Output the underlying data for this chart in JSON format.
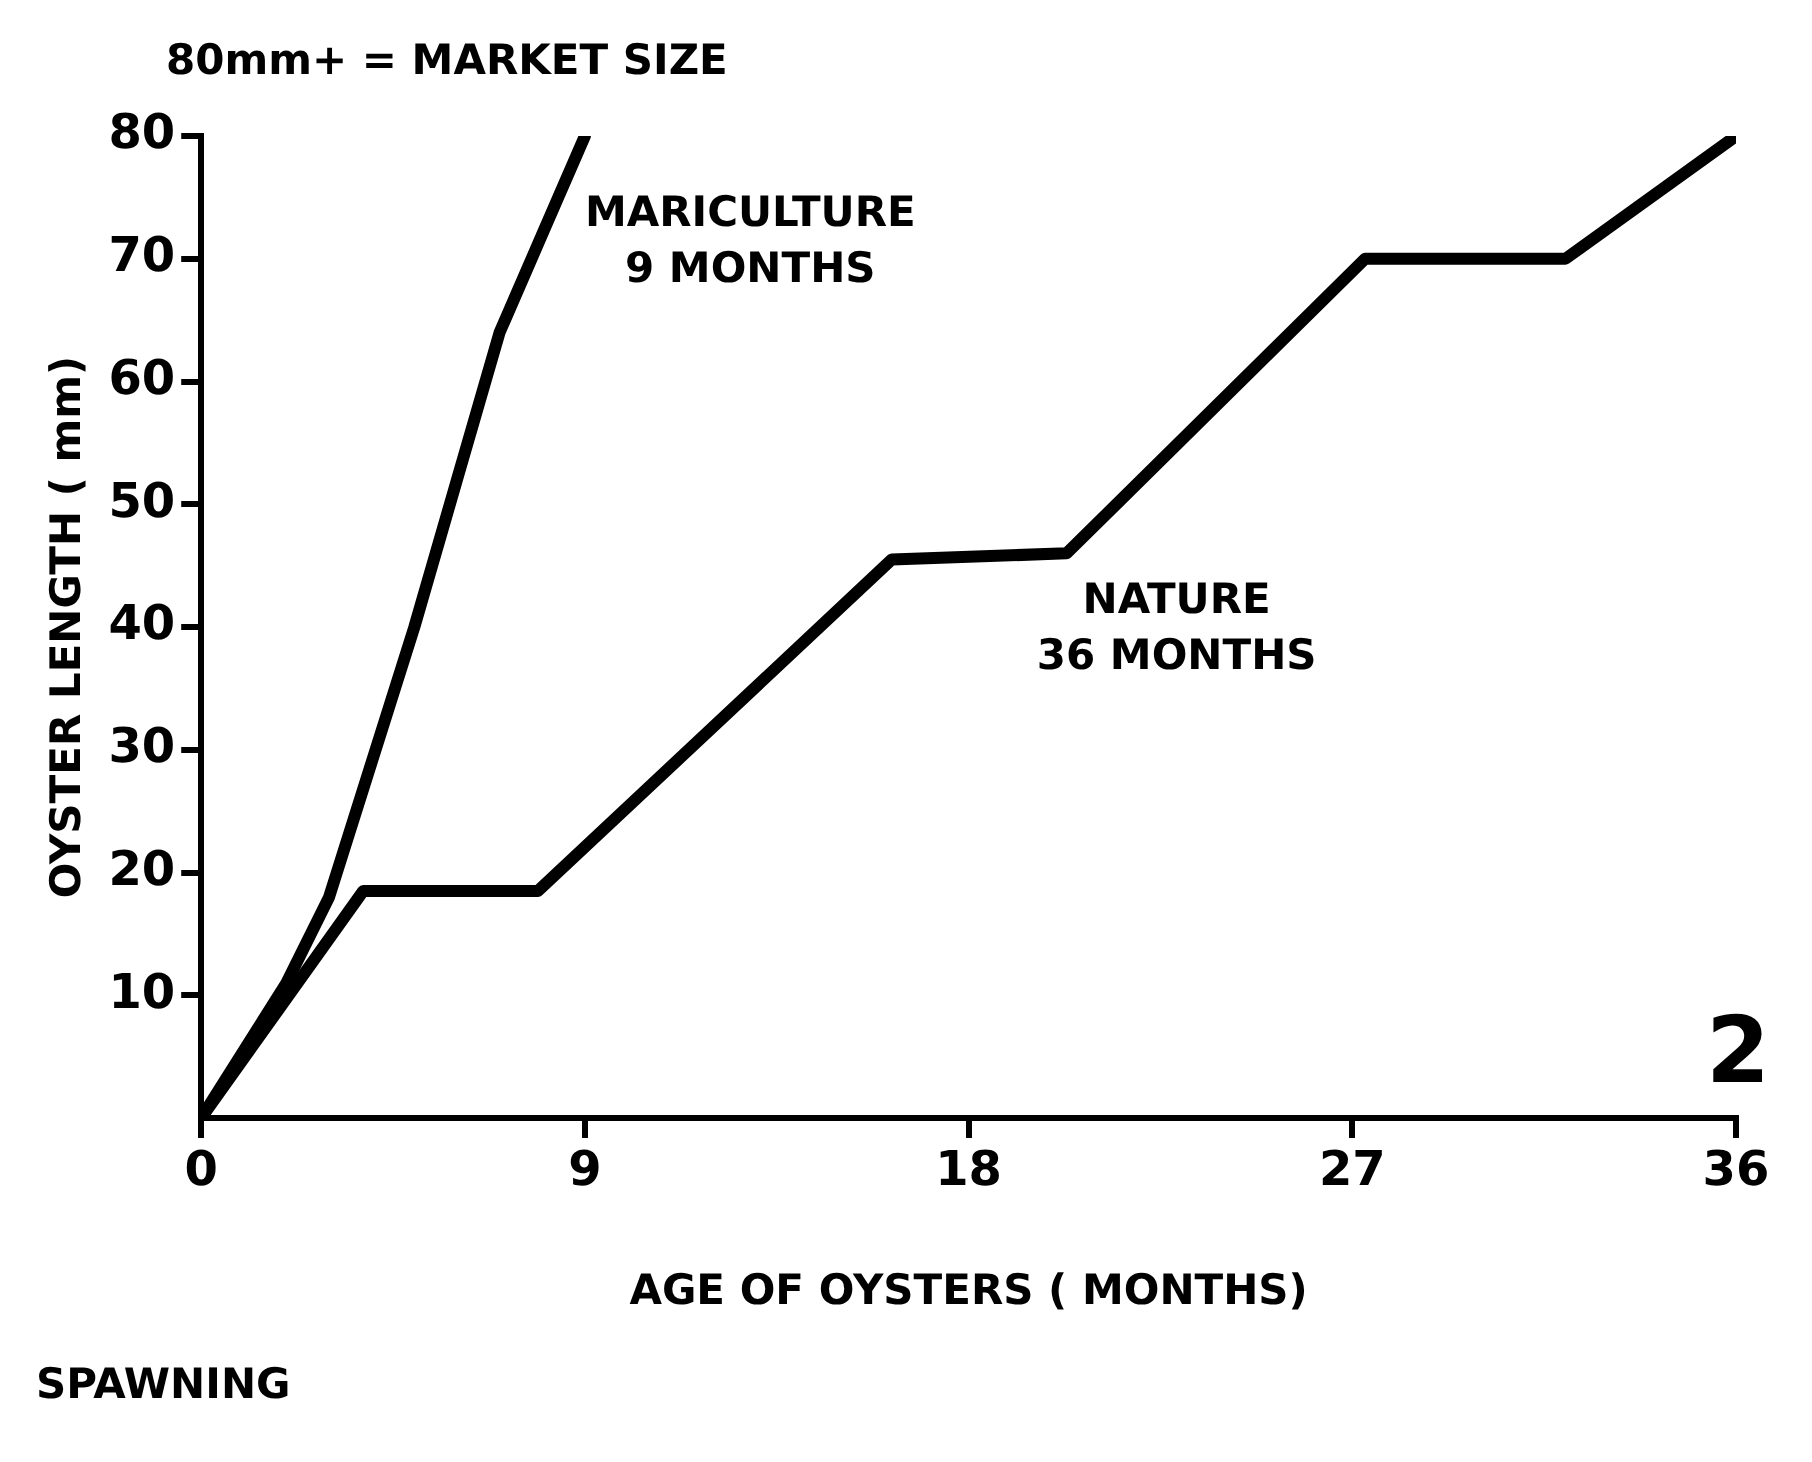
{
  "chart_data": {
    "type": "line",
    "title": "80mm+ = MARKET SIZE",
    "xlabel": "AGE OF OYSTERS ( MONTHS)",
    "ylabel": "OYSTER LENGTH ( mm)",
    "series": [
      {
        "name": "MARICULTURE\n9 MONTHS",
        "color": "#000000",
        "x": [
          0,
          2,
          3,
          4,
          5,
          6,
          7,
          8,
          9
        ],
        "values": [
          0,
          11,
          18,
          29,
          40,
          52,
          64,
          72,
          80
        ]
      },
      {
        "name": "NATURE\n36 MONTHS",
        "color": "#000000",
        "x": [
          0,
          3.8,
          7.9,
          16.2,
          20.3,
          27.3,
          32,
          36
        ],
        "values": [
          0,
          18.5,
          18.5,
          45.5,
          46,
          70,
          70,
          80
        ]
      }
    ],
    "xlim": [
      0,
      36
    ],
    "xticks": [
      0,
      9,
      18,
      27,
      36
    ],
    "ylim": [
      0,
      80
    ],
    "yticks": [
      10,
      20,
      30,
      40,
      50,
      60,
      70,
      80
    ],
    "grid": false,
    "legend": false,
    "marker": "none",
    "line_style": "solid",
    "annotations": [
      "SPAWNING",
      "2"
    ]
  }
}
